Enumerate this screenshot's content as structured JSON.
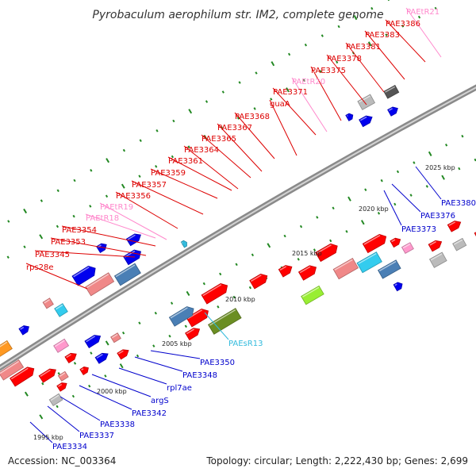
{
  "title": "Pyrobaculum aerophilum str. IM2, complete genome",
  "footer": {
    "accession": "Accession: NC_003364",
    "summary": "Topology: circular; Length: 2,222,430 bp; Genes: 2,699"
  },
  "colors": {
    "cds_red": "#ff0000",
    "cds_blue": "#0000ee",
    "trna_pink": "#ff99cc",
    "srna_cyan": "#33bbdd",
    "backbone": "#888888",
    "tick_green": "#228822"
  },
  "ticks": [
    "1995 kbp",
    "2000 kbp",
    "2005 kbp",
    "2010 kbp",
    "2015 kbp",
    "2020 kbp",
    "2025 kbp"
  ],
  "labels": {
    "top": [
      "rps28e",
      "PAE3345",
      "PAE3353",
      "PAE3354",
      "PAEtR18",
      "PAEtR19",
      "PAE3356",
      "PAE3357",
      "PAE3359",
      "PAE3361",
      "PAE3364",
      "PAE3365",
      "PAE3367",
      "PAE3368",
      "guaA",
      "PAE3371",
      "PAEtR20",
      "PAE3375",
      "PAE3378",
      "PAE3381",
      "PAE3383",
      "PAE3386",
      "PAEtR21"
    ],
    "bottom": [
      "PAE3334",
      "PAE3337",
      "PAE3338",
      "PAE3342",
      "argS",
      "rpl7ae",
      "PAE3348",
      "PAE3350",
      "PAEsR13",
      "PAE3373",
      "PAE3376",
      "PAE3380"
    ]
  }
}
